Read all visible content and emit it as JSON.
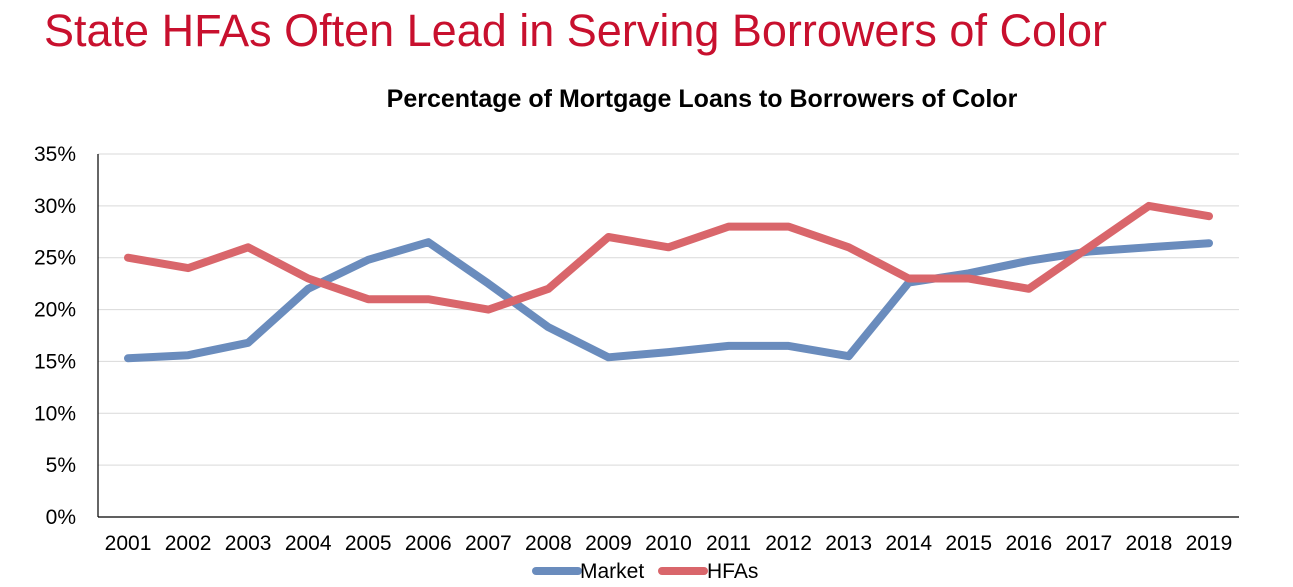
{
  "slide_title": "State HFAs Often Lead in Serving Borrowers of Color",
  "chart_data": {
    "type": "line",
    "title": "Percentage of Mortgage Loans to Borrowers of Color",
    "xlabel": "",
    "ylabel": "",
    "ylim": [
      0,
      35
    ],
    "y_tick_labels": [
      "0%",
      "5%",
      "10%",
      "15%",
      "20%",
      "25%",
      "30%",
      "35%"
    ],
    "y_tick_values": [
      0,
      5,
      10,
      15,
      20,
      25,
      30,
      35
    ],
    "grid": true,
    "legend_position": "bottom",
    "x": [
      "2001",
      "2002",
      "2003",
      "2004",
      "2005",
      "2006",
      "2007",
      "2008",
      "2009",
      "2010",
      "2011",
      "2012",
      "2013",
      "2014",
      "2015",
      "2016",
      "2017",
      "2018",
      "2019"
    ],
    "series": [
      {
        "name": "Market",
        "color": "#6A8CBD",
        "values": [
          15.3,
          15.6,
          16.8,
          22.0,
          24.8,
          26.5,
          22.5,
          18.3,
          15.4,
          15.9,
          16.5,
          16.5,
          15.5,
          22.6,
          23.5,
          24.7,
          25.6,
          26.0,
          26.4
        ]
      },
      {
        "name": "HFAs",
        "color": "#D9666B",
        "values": [
          25.0,
          24.0,
          26.0,
          23.0,
          21.0,
          21.0,
          20.0,
          22.0,
          27.0,
          26.0,
          28.0,
          28.0,
          26.0,
          23.0,
          23.0,
          22.0,
          26.0,
          30.0,
          29.0
        ]
      }
    ]
  }
}
